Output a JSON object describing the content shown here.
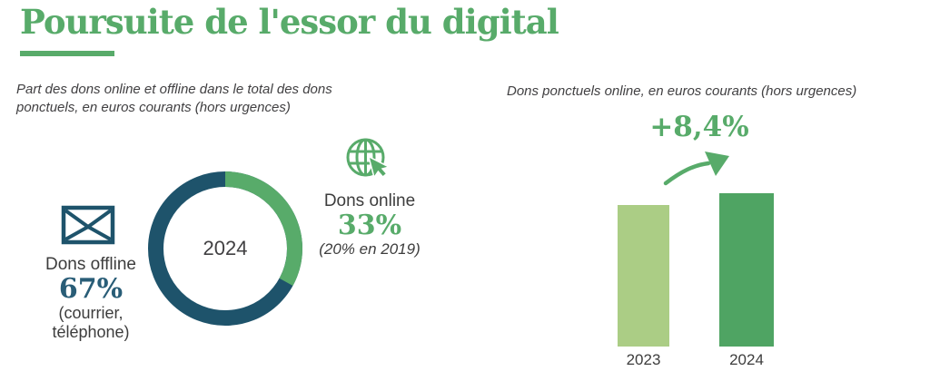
{
  "page": {
    "title": "Poursuite de l'essor du digital"
  },
  "colors": {
    "accent_green": "#58ab6a",
    "dark_teal": "#1e536b",
    "teal_text": "#295d77",
    "bar_2023": "#abcd85",
    "bar_2024": "#4fa463",
    "body_text": "#3d3d3d"
  },
  "chart_data": [
    {
      "type": "pie",
      "subtype": "donut",
      "title": "Part des dons online et offline dans le total des dons ponctuels, en euros courants (hors urgences)",
      "center_label": "2024",
      "slices": [
        {
          "label": "Dons online",
          "value": 33,
          "display_value": "33%",
          "note": "(20% en 2019)",
          "color": "#58ab6a"
        },
        {
          "label": "Dons offline",
          "value": 67,
          "display_value": "67%",
          "note": "(courrier, téléphone)",
          "color": "#1e536b"
        }
      ],
      "start_angle_deg": 0,
      "direction": "clockwise",
      "legend_position": "sides"
    },
    {
      "type": "bar",
      "title": "Dons ponctuels online, en euros courants (hors urgences)",
      "categories": [
        "2023",
        "2024"
      ],
      "values": [
        100,
        108.4
      ],
      "values_note": "relative index estimated from bar heights, 2023 = 100",
      "colors": [
        "#abcd85",
        "#4fa463"
      ],
      "annotation": "+8,4%",
      "orientation": "vertical",
      "grid": "off",
      "value_labels": "none"
    }
  ]
}
